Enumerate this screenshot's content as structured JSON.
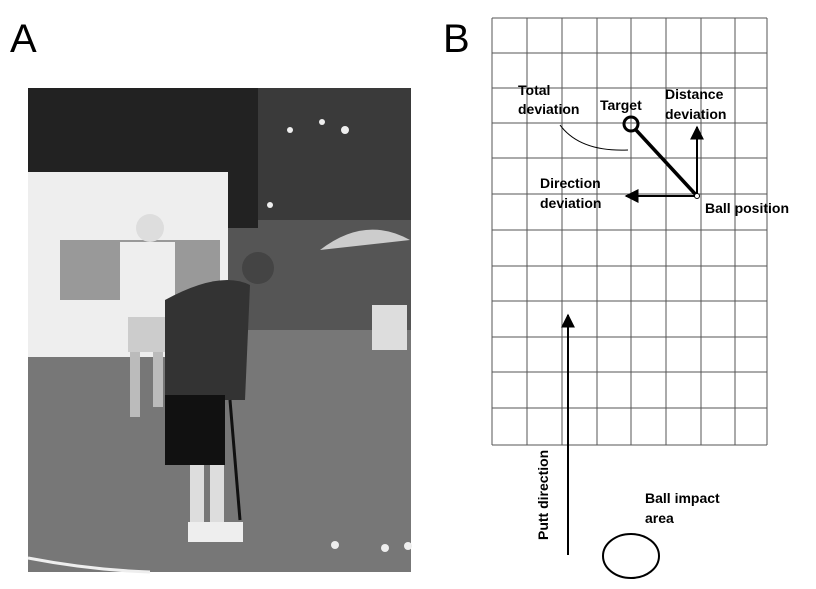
{
  "panels": {
    "a": {
      "label": "A"
    },
    "b": {
      "label": "B"
    }
  },
  "labels": {
    "total_deviation": [
      "Total",
      "deviation"
    ],
    "target": "Target",
    "distance_deviation": [
      "Distance",
      "deviation"
    ],
    "direction_deviation": [
      "Direction",
      "deviation"
    ],
    "ball_position": "Ball position",
    "putt_direction": "Putt direction",
    "ball_impact_area": [
      "Ball impact",
      "area"
    ]
  }
}
